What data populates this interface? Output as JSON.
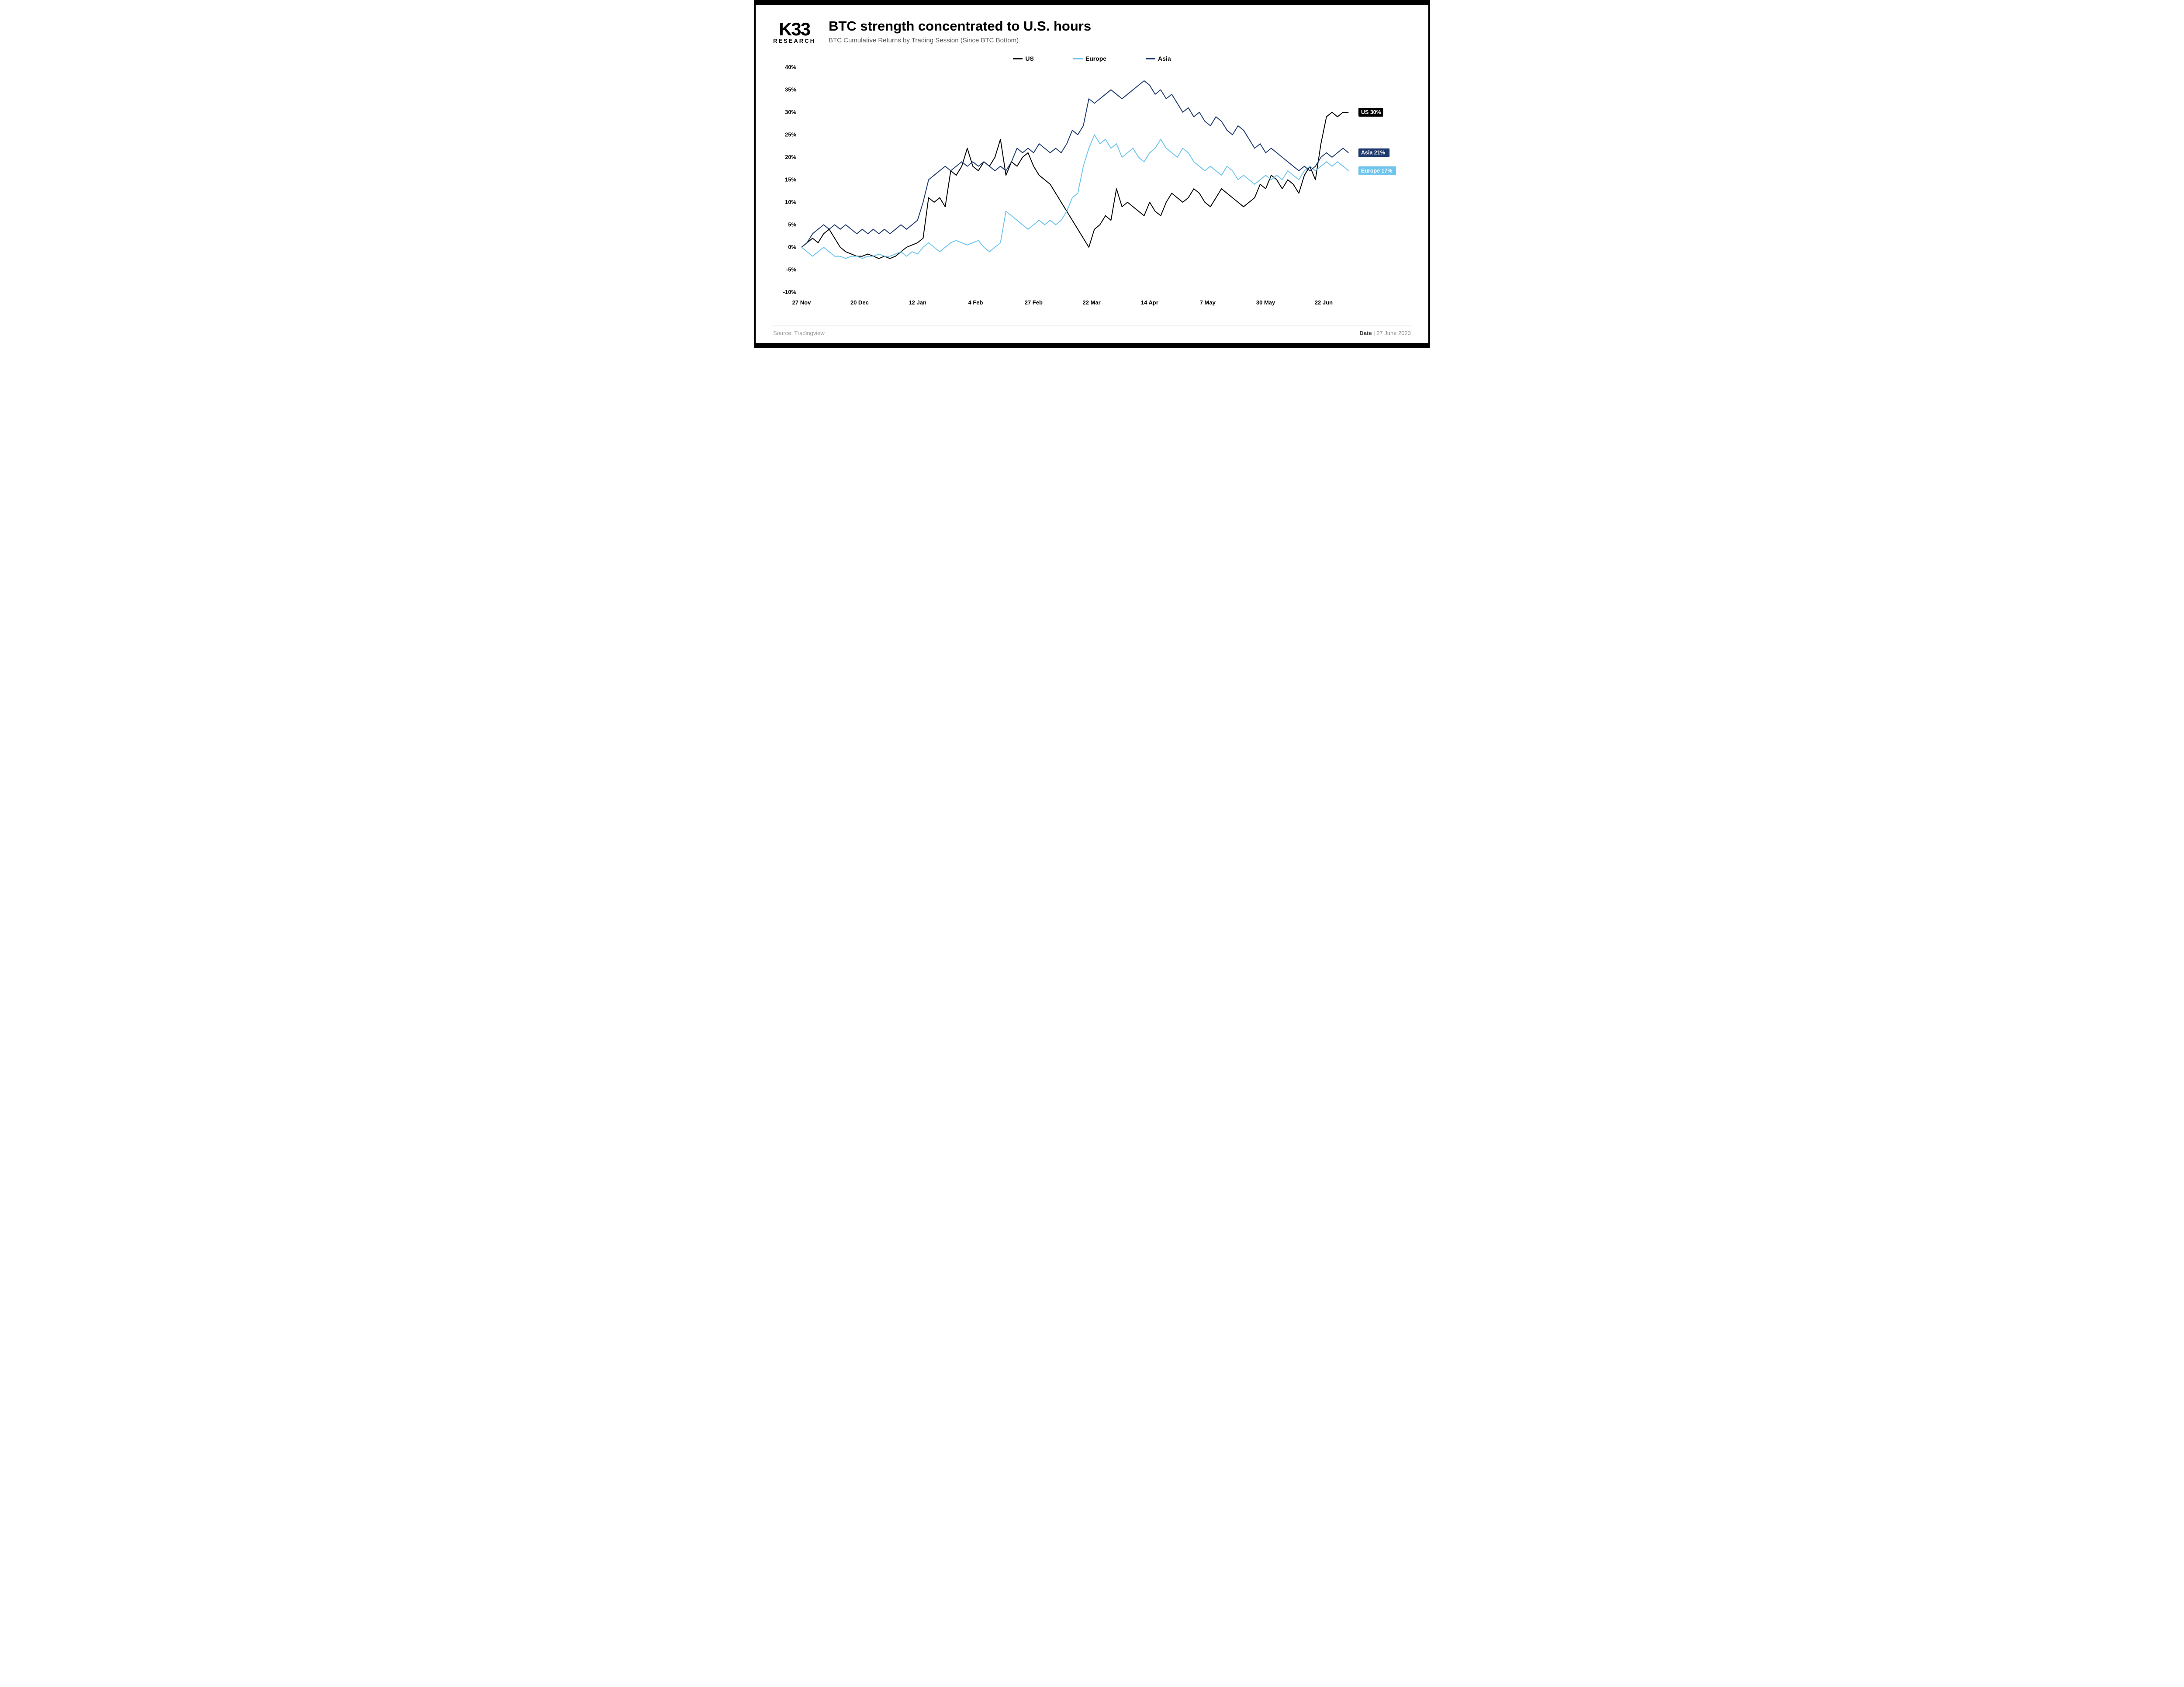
{
  "brand": {
    "main": "K33",
    "sub": "RESEARCH"
  },
  "title": "BTC strength concentrated to U.S. hours",
  "subtitle": "BTC Cumulative Returns by Trading Session (Since BTC Bottom)",
  "chart": {
    "type": "line",
    "background_color": "#ffffff",
    "grid_color": "none",
    "axis_color": "#000000",
    "y": {
      "min": -10,
      "max": 40,
      "step": 5,
      "labels": [
        "-10%",
        "-5%",
        "0%",
        "5%",
        "10%",
        "15%",
        "20%",
        "25%",
        "30%",
        "35%",
        "40%"
      ],
      "fontsize": 13,
      "fontweight": 700
    },
    "x": {
      "labels": [
        "27 Nov",
        "20 Dec",
        "12 Jan",
        "4 Feb",
        "27 Feb",
        "22 Mar",
        "14 Apr",
        "7 May",
        "30 May",
        "22 Jun"
      ],
      "positions": [
        0,
        10.5,
        21,
        31.5,
        42,
        52.5,
        63,
        73.5,
        84,
        94.5
      ],
      "max_index": 100,
      "fontsize": 13,
      "fontweight": 700
    },
    "legend": {
      "items": [
        {
          "label": "US",
          "color": "#000000"
        },
        {
          "label": "Europe",
          "color": "#6fc5ec"
        },
        {
          "label": "Asia",
          "color": "#1e3a6e"
        }
      ],
      "fontsize": 14
    },
    "series": [
      {
        "name": "US",
        "color": "#000000",
        "width": 2,
        "end_label": "US 30%",
        "end_label_bg": "#000000",
        "end_label_fg": "#ffffff",
        "data": [
          0,
          1,
          2,
          1,
          3,
          4,
          2,
          0,
          -1,
          -1.5,
          -2,
          -2,
          -1.5,
          -2,
          -2.5,
          -2,
          -2.5,
          -2,
          -1,
          0,
          0.5,
          1,
          2,
          11,
          10,
          11,
          9,
          17,
          16,
          18,
          22,
          18,
          17,
          19,
          18,
          20,
          24,
          16,
          19,
          18,
          20,
          21,
          18,
          16,
          15,
          14,
          12,
          10,
          8,
          6,
          4,
          2,
          0,
          4,
          5,
          7,
          6,
          13,
          9,
          10,
          9,
          8,
          7,
          10,
          8,
          7,
          10,
          12,
          11,
          10,
          11,
          13,
          12,
          10,
          9,
          11,
          13,
          12,
          11,
          10,
          9,
          10,
          11,
          14,
          13,
          16,
          15,
          13,
          15,
          14,
          12,
          16,
          18,
          15,
          23,
          29,
          30,
          29,
          30,
          30
        ]
      },
      {
        "name": "Europe",
        "color": "#6fc5ec",
        "width": 2,
        "end_label": "Europe 17%",
        "end_label_bg": "#6fc5ec",
        "end_label_fg": "#ffffff",
        "data": [
          0,
          -1,
          -2,
          -1,
          0,
          -1,
          -2,
          -2,
          -2.5,
          -2,
          -2,
          -2.5,
          -2,
          -2,
          -1.5,
          -2,
          -2,
          -1.5,
          -1,
          -2,
          -1,
          -1.5,
          0,
          1,
          0,
          -1,
          0,
          1,
          1.5,
          1,
          0.5,
          1,
          1.5,
          0,
          -1,
          0,
          1,
          8,
          7,
          6,
          5,
          4,
          5,
          6,
          5,
          6,
          5,
          6,
          8,
          11,
          12,
          18,
          22,
          25,
          23,
          24,
          22,
          23,
          20,
          21,
          22,
          20,
          19,
          21,
          22,
          24,
          22,
          21,
          20,
          22,
          21,
          19,
          18,
          17,
          18,
          17,
          16,
          18,
          17,
          15,
          16,
          15,
          14,
          15,
          16,
          15,
          16,
          15,
          17,
          16,
          15,
          17,
          18,
          17,
          18,
          19,
          18,
          19,
          18,
          17
        ]
      },
      {
        "name": "Asia",
        "color": "#1e3a6e",
        "width": 2,
        "end_label": "Asia 21%",
        "end_label_bg": "#1e3a6e",
        "end_label_fg": "#ffffff",
        "data": [
          0,
          1,
          3,
          4,
          5,
          4,
          5,
          4,
          5,
          4,
          3,
          4,
          3,
          4,
          3,
          4,
          3,
          4,
          5,
          4,
          5,
          6,
          10,
          15,
          16,
          17,
          18,
          17,
          18,
          19,
          18,
          19,
          18,
          19,
          18,
          17,
          18,
          17,
          19,
          22,
          21,
          22,
          21,
          23,
          22,
          21,
          22,
          21,
          23,
          26,
          25,
          27,
          33,
          32,
          33,
          34,
          35,
          34,
          33,
          34,
          35,
          36,
          37,
          36,
          34,
          35,
          33,
          34,
          32,
          30,
          31,
          29,
          30,
          28,
          27,
          29,
          28,
          26,
          25,
          27,
          26,
          24,
          22,
          23,
          21,
          22,
          21,
          20,
          19,
          18,
          17,
          18,
          17,
          18,
          20,
          21,
          20,
          21,
          22,
          21
        ]
      }
    ],
    "line_stroke_width": 2
  },
  "footer": {
    "source_label": "Source: Tradingview",
    "date_label": "Date",
    "date_value": "27 June 2023"
  }
}
